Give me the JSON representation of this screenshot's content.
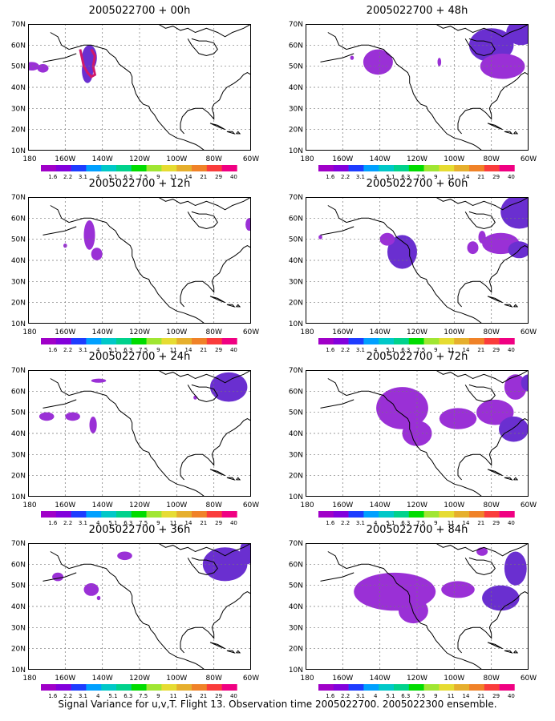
{
  "figure": {
    "caption": "Signal Variance for u,v,T. Flight 13. Observation time 2005022700. 2005022300 ensemble.",
    "panels": [
      {
        "title": "2005022700 + 00h"
      },
      {
        "title": "2005022700 + 48h"
      },
      {
        "title": "2005022700 + 12h"
      },
      {
        "title": "2005022700 + 60h"
      },
      {
        "title": "2005022700 + 24h"
      },
      {
        "title": "2005022700 + 72h"
      },
      {
        "title": "2005022700 + 36h"
      },
      {
        "title": "2005022700 + 84h"
      }
    ],
    "axes": {
      "lat_labels": [
        "70N",
        "60N",
        "50N",
        "40N",
        "30N",
        "20N",
        "10N"
      ],
      "lon_labels": [
        "180",
        "160W",
        "140W",
        "120W",
        "100W",
        "80W",
        "60W"
      ]
    },
    "colorbar": {
      "labels": [
        "1.6",
        "2.2",
        "3.1",
        "4",
        "5.1",
        "6.3",
        "7.5",
        "9",
        "11",
        "14",
        "21",
        "29",
        "40"
      ],
      "colors": [
        "#a000c8",
        "#8200dc",
        "#1e3cff",
        "#00a0ff",
        "#00c8c8",
        "#00d28c",
        "#00dc00",
        "#a0e632",
        "#e6dc32",
        "#e6af2d",
        "#f08228",
        "#fa3c3c",
        "#f00082"
      ]
    },
    "fill_color": "#9a30d6",
    "fill_color_dark": "#6a2fd0",
    "initial_color": "#d0186c"
  }
}
